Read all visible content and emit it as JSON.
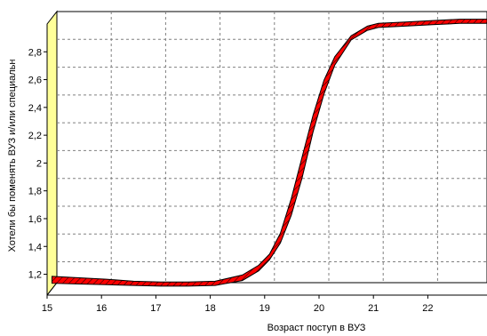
{
  "chart_data": {
    "type": "line",
    "title": "",
    "xlabel": "Возраст поступ в ВУЗ",
    "ylabel": "Хотели бы поменять ВУЗ и/или специальн",
    "xlim": [
      15,
      23
    ],
    "ylim": [
      1.05,
      3.0
    ],
    "x_ticks": [
      "15",
      "16",
      "17",
      "18",
      "19",
      "20",
      "21",
      "22"
    ],
    "x_tick_values": [
      15,
      16,
      17,
      18,
      19,
      20,
      21,
      22
    ],
    "y_ticks": [
      "1,2",
      "1,4",
      "1,6",
      "1,8",
      "2",
      "2,2",
      "2,4",
      "2,6",
      "2,8"
    ],
    "y_tick_values": [
      1.2,
      1.4,
      1.6,
      1.8,
      2.0,
      2.2,
      2.4,
      2.6,
      2.8
    ],
    "grid": true,
    "series": [
      {
        "x": [
          15,
          15.5,
          16,
          16.5,
          17,
          17.5,
          18,
          18.5,
          18.8,
          19,
          19.2,
          19.4,
          19.6,
          19.8,
          20,
          20.2,
          20.5,
          20.8,
          21,
          21.5,
          22,
          22.5,
          23
        ],
        "upper": [
          1.14,
          1.13,
          1.12,
          1.105,
          1.1,
          1.1,
          1.105,
          1.15,
          1.22,
          1.3,
          1.45,
          1.7,
          2.0,
          2.3,
          2.55,
          2.72,
          2.87,
          2.94,
          2.96,
          2.97,
          2.98,
          2.99,
          2.99
        ],
        "lower": [
          1.09,
          1.085,
          1.08,
          1.075,
          1.07,
          1.07,
          1.075,
          1.11,
          1.18,
          1.26,
          1.38,
          1.58,
          1.85,
          2.18,
          2.45,
          2.66,
          2.84,
          2.91,
          2.93,
          2.94,
          2.95,
          2.96,
          2.96
        ],
        "color": "#ff0000"
      }
    ],
    "colors": {
      "band_fill": "#ff0000",
      "band_stroke": "#000000",
      "back_wall": "#ffff99",
      "grid": "#808080"
    }
  }
}
